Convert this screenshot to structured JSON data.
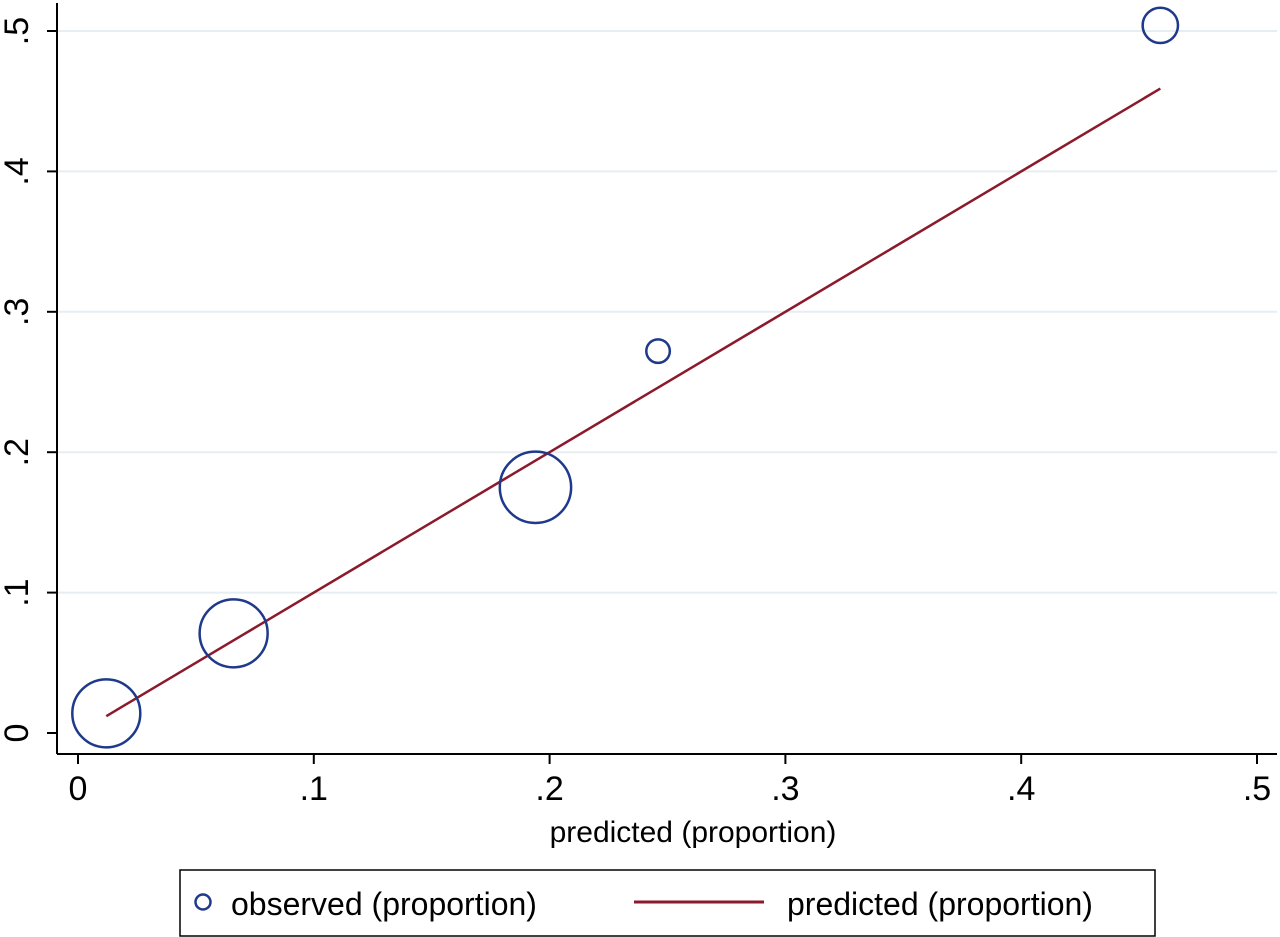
{
  "chart_data": {
    "type": "scatter",
    "title": "",
    "xlabel": "predicted (proportion)",
    "ylabel": "",
    "xlim": [
      0,
      0.5
    ],
    "ylim": [
      0,
      0.5
    ],
    "x_ticks": [
      0,
      0.1,
      0.2,
      0.3,
      0.4,
      0.5
    ],
    "x_tick_labels": [
      "0",
      ".1",
      ".2",
      ".3",
      ".4",
      ".5"
    ],
    "y_ticks": [
      0,
      0.1,
      0.2,
      0.3,
      0.4,
      0.5
    ],
    "y_tick_labels": [
      "0",
      ".1",
      ".2",
      ".3",
      ".4",
      ".5"
    ],
    "grid": true,
    "legend_position": "bottom",
    "series": [
      {
        "name": "observed (proportion)",
        "kind": "hollow-circle",
        "color": "#1f3a8a",
        "points": [
          {
            "x": 0.012,
            "y": 0.014,
            "weight": 1.0
          },
          {
            "x": 0.066,
            "y": 0.071,
            "weight": 1.0
          },
          {
            "x": 0.194,
            "y": 0.175,
            "weight": 1.1
          },
          {
            "x": 0.246,
            "y": 0.272,
            "weight": 0.12
          },
          {
            "x": 0.459,
            "y": 0.504,
            "weight": 0.27
          }
        ]
      },
      {
        "name": "predicted (proportion)",
        "kind": "line",
        "color": "#8b1a2b",
        "points": [
          {
            "x": 0.012,
            "y": 0.012
          },
          {
            "x": 0.459,
            "y": 0.459
          }
        ]
      }
    ]
  }
}
